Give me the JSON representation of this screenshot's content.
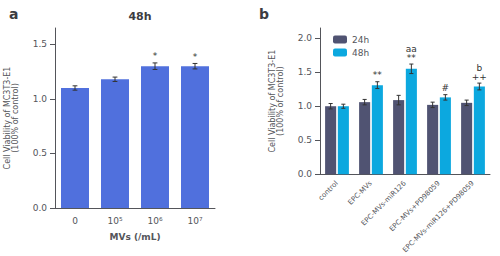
{
  "chart_data": [
    {
      "type": "bar",
      "panel_label": "a",
      "title": "48h",
      "xlabel": "MVs (/mL)",
      "ylabel": "Cell Viability of MC3T3-E1\n(100% of control)",
      "categories": [
        "0",
        "10⁵",
        "10⁶",
        "10⁷"
      ],
      "values": [
        1.1,
        1.18,
        1.3,
        1.3
      ],
      "errors": [
        0.02,
        0.02,
        0.03,
        0.025
      ],
      "annotations": [
        null,
        null,
        "*",
        "*"
      ],
      "ylim": [
        0.0,
        1.65
      ],
      "yticks": [
        {
          "value": 0,
          "label": "0.0"
        },
        0.5,
        {
          "value": 1,
          "label": "1.0"
        },
        1.5
      ],
      "grid": false
    },
    {
      "type": "bar",
      "panel_label": "b",
      "ylabel": "Cell Viability of MC3T3-E1\n(100% of control)",
      "categories": [
        "control",
        "EPC-MVs",
        "EPC-MVs-miR126",
        "EPC-MVs+PD98059",
        "EPC-MVs-miR126+PD98059"
      ],
      "series": [
        {
          "name": "24h",
          "values": [
            1.0,
            1.06,
            1.09,
            1.02,
            1.05
          ],
          "errors": [
            0.04,
            0.04,
            0.07,
            0.04,
            0.04
          ]
        },
        {
          "name": "48h",
          "values": [
            1.0,
            1.31,
            1.55,
            1.13,
            1.29
          ],
          "errors": [
            0.03,
            0.05,
            0.07,
            0.04,
            0.05
          ],
          "annotations": [
            null,
            "**",
            "**",
            "#",
            "++"
          ],
          "annotations_top": [
            null,
            null,
            "aa",
            null,
            "b"
          ]
        }
      ],
      "ylim": [
        0.0,
        2.15
      ],
      "yticks": [
        {
          "value": 0,
          "label": "0.0"
        },
        0.5,
        {
          "value": 1,
          "label": "1.0"
        },
        1.5,
        {
          "value": 2,
          "label": "2.0"
        }
      ],
      "grid": false,
      "legend": "upper left"
    }
  ]
}
